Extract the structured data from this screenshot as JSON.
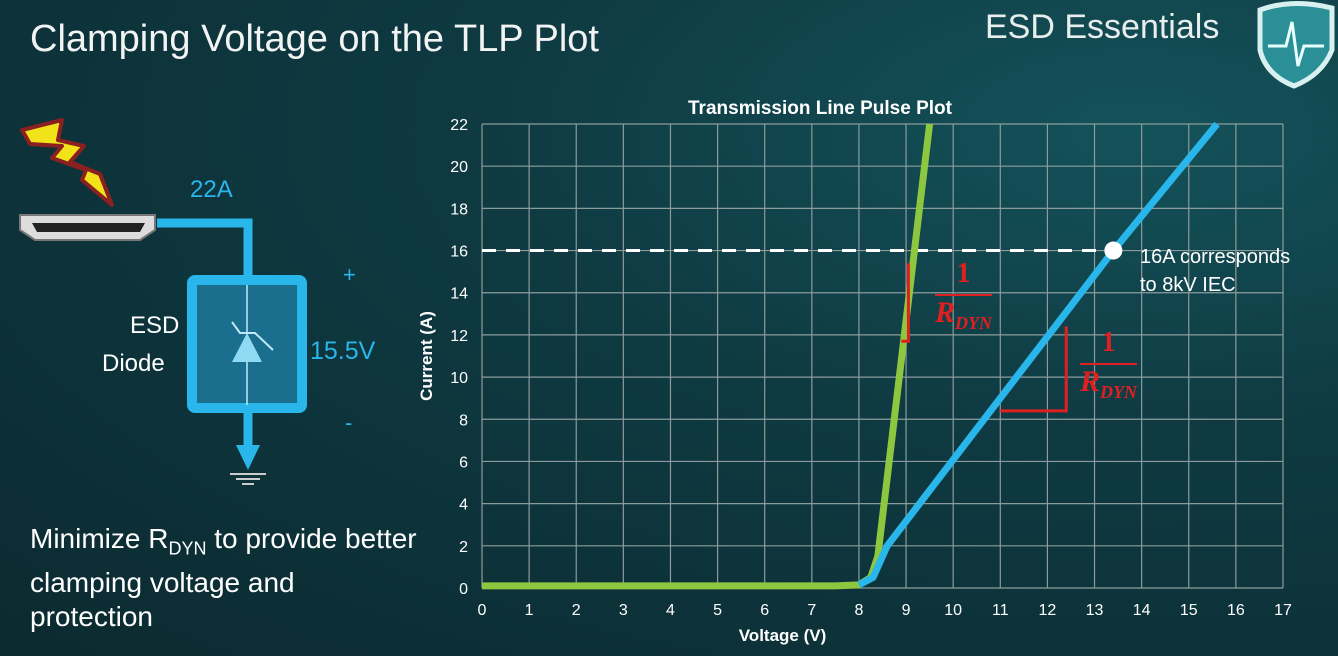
{
  "slide": {
    "title": "Clamping Voltage on the TLP Plot",
    "brand": "ESD Essentials",
    "circuit": {
      "current": "22A",
      "voltage": "15.5V",
      "plus": "+",
      "minus": "-",
      "device_line1": "ESD",
      "device_line2": "Diode"
    },
    "note": {
      "pre": "Minimize R",
      "sub": "DYN",
      "post": " to provide better clamping voltage and protection"
    },
    "annotation": {
      "line1": "16A corresponds",
      "line2": "to 8kV IEC"
    },
    "rdyn": {
      "numerator": "1",
      "symbol": "R",
      "subscript": "DYN"
    }
  },
  "chart_data": {
    "type": "line",
    "title": "Transmission Line Pulse Plot",
    "xlabel": "Voltage (V)",
    "ylabel": "Current (A)",
    "xlim": [
      0,
      17
    ],
    "ylim": [
      0,
      22
    ],
    "xticks": [
      "0",
      "1",
      "2",
      "3",
      "4",
      "5",
      "6",
      "7",
      "8",
      "9",
      "10",
      "11",
      "12",
      "13",
      "14",
      "15",
      "16",
      "17"
    ],
    "yticks": [
      "0",
      "2",
      "4",
      "6",
      "8",
      "10",
      "12",
      "14",
      "16",
      "18",
      "20",
      "22"
    ],
    "grid": true,
    "series": [
      {
        "color": "#8dc63f",
        "points": [
          [
            0,
            0.1
          ],
          [
            7.5,
            0.1
          ],
          [
            8.0,
            0.15
          ],
          [
            8.25,
            0.5
          ],
          [
            8.4,
            1.5
          ],
          [
            9.5,
            22
          ]
        ]
      },
      {
        "color": "#29b6ea",
        "points": [
          [
            8.0,
            0.15
          ],
          [
            8.3,
            0.5
          ],
          [
            8.6,
            2
          ],
          [
            11,
            9.0
          ],
          [
            13.4,
            16
          ],
          [
            15.6,
            22
          ]
        ]
      }
    ],
    "reference_line": {
      "y": 16,
      "style": "dashed",
      "color": "#ffffff"
    },
    "marker": {
      "x": 13.4,
      "y": 16,
      "color": "#ffffff"
    }
  }
}
